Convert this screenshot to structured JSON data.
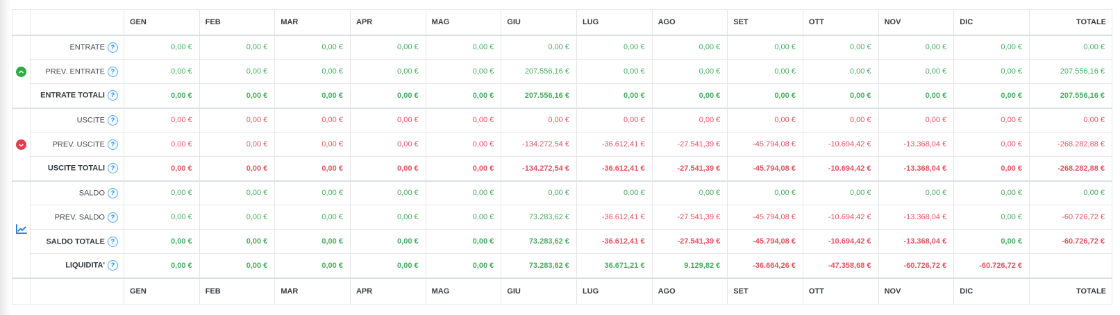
{
  "colors": {
    "positive_value": "#46ad5f",
    "negative_value": "#e25360",
    "income_icon": "#2eac44",
    "expense_icon": "#e23d4d",
    "chart_icon": "#2e7dd1",
    "help_icon": "#2f88d8",
    "border": "#e3e6ea"
  },
  "table": {
    "months": [
      "GEN",
      "FEB",
      "MAR",
      "APR",
      "MAG",
      "GIU",
      "LUG",
      "AGO",
      "SET",
      "OTT",
      "NOV",
      "DIC"
    ],
    "total_label": "TOTALE",
    "help_glyph": "?",
    "groups": [
      {
        "icon": "arrow-up-circle-icon",
        "rows": [
          {
            "label": "ENTRATE",
            "bold": false,
            "cells": [
              [
                "0,00 €",
                "p"
              ],
              [
                "0,00 €",
                "p"
              ],
              [
                "0,00 €",
                "p"
              ],
              [
                "0,00 €",
                "p"
              ],
              [
                "0,00 €",
                "p"
              ],
              [
                "0,00 €",
                "p"
              ],
              [
                "0,00 €",
                "p"
              ],
              [
                "0,00 €",
                "p"
              ],
              [
                "0,00 €",
                "p"
              ],
              [
                "0,00 €",
                "p"
              ],
              [
                "0,00 €",
                "p"
              ],
              [
                "0,00 €",
                "p"
              ],
              [
                "0,00 €",
                "p"
              ]
            ]
          },
          {
            "label": "PREV. ENTRATE",
            "bold": false,
            "cells": [
              [
                "0,00 €",
                "p"
              ],
              [
                "0,00 €",
                "p"
              ],
              [
                "0,00 €",
                "p"
              ],
              [
                "0,00 €",
                "p"
              ],
              [
                "0,00 €",
                "p"
              ],
              [
                "207.556,16 €",
                "p"
              ],
              [
                "0,00 €",
                "p"
              ],
              [
                "0,00 €",
                "p"
              ],
              [
                "0,00 €",
                "p"
              ],
              [
                "0,00 €",
                "p"
              ],
              [
                "0,00 €",
                "p"
              ],
              [
                "0,00 €",
                "p"
              ],
              [
                "207.556,16 €",
                "p"
              ]
            ]
          },
          {
            "label": "ENTRATE TOTALI",
            "bold": true,
            "cells": [
              [
                "0,00 €",
                "p"
              ],
              [
                "0,00 €",
                "p"
              ],
              [
                "0,00 €",
                "p"
              ],
              [
                "0,00 €",
                "p"
              ],
              [
                "0,00 €",
                "p"
              ],
              [
                "207.556,16 €",
                "p"
              ],
              [
                "0,00 €",
                "p"
              ],
              [
                "0,00 €",
                "p"
              ],
              [
                "0,00 €",
                "p"
              ],
              [
                "0,00 €",
                "p"
              ],
              [
                "0,00 €",
                "p"
              ],
              [
                "0,00 €",
                "p"
              ],
              [
                "207.556,16 €",
                "p"
              ]
            ]
          }
        ]
      },
      {
        "icon": "arrow-down-circle-icon",
        "rows": [
          {
            "label": "USCITE",
            "bold": false,
            "cells": [
              [
                "0,00 €",
                "n"
              ],
              [
                "0,00 €",
                "n"
              ],
              [
                "0,00 €",
                "n"
              ],
              [
                "0,00 €",
                "n"
              ],
              [
                "0,00 €",
                "n"
              ],
              [
                "0,00 €",
                "n"
              ],
              [
                "0,00 €",
                "n"
              ],
              [
                "0,00 €",
                "n"
              ],
              [
                "0,00 €",
                "n"
              ],
              [
                "0,00 €",
                "n"
              ],
              [
                "0,00 €",
                "n"
              ],
              [
                "0,00 €",
                "n"
              ],
              [
                "0,00 €",
                "n"
              ]
            ]
          },
          {
            "label": "PREV. USCITE",
            "bold": false,
            "cells": [
              [
                "0,00 €",
                "n"
              ],
              [
                "0,00 €",
                "n"
              ],
              [
                "0,00 €",
                "n"
              ],
              [
                "0,00 €",
                "n"
              ],
              [
                "0,00 €",
                "n"
              ],
              [
                "-134.272,54 €",
                "n"
              ],
              [
                "-36.612,41 €",
                "n"
              ],
              [
                "-27.541,39 €",
                "n"
              ],
              [
                "-45.794,08 €",
                "n"
              ],
              [
                "-10.694,42 €",
                "n"
              ],
              [
                "-13.368,04 €",
                "n"
              ],
              [
                "0,00 €",
                "n"
              ],
              [
                "-268.282,88 €",
                "n"
              ]
            ]
          },
          {
            "label": "USCITE TOTALI",
            "bold": true,
            "cells": [
              [
                "0,00 €",
                "n"
              ],
              [
                "0,00 €",
                "n"
              ],
              [
                "0,00 €",
                "n"
              ],
              [
                "0,00 €",
                "n"
              ],
              [
                "0,00 €",
                "n"
              ],
              [
                "-134.272,54 €",
                "n"
              ],
              [
                "-36.612,41 €",
                "n"
              ],
              [
                "-27.541,39 €",
                "n"
              ],
              [
                "-45.794,08 €",
                "n"
              ],
              [
                "-10.694,42 €",
                "n"
              ],
              [
                "-13.368,04 €",
                "n"
              ],
              [
                "0,00 €",
                "n"
              ],
              [
                "-268.282,88 €",
                "n"
              ]
            ]
          }
        ]
      },
      {
        "icon": "line-chart-icon",
        "rows": [
          {
            "label": "SALDO",
            "bold": false,
            "cells": [
              [
                "0,00 €",
                "p"
              ],
              [
                "0,00 €",
                "p"
              ],
              [
                "0,00 €",
                "p"
              ],
              [
                "0,00 €",
                "p"
              ],
              [
                "0,00 €",
                "p"
              ],
              [
                "0,00 €",
                "p"
              ],
              [
                "0,00 €",
                "p"
              ],
              [
                "0,00 €",
                "p"
              ],
              [
                "0,00 €",
                "p"
              ],
              [
                "0,00 €",
                "p"
              ],
              [
                "0,00 €",
                "p"
              ],
              [
                "0,00 €",
                "p"
              ],
              [
                "0,00 €",
                "p"
              ]
            ]
          },
          {
            "label": "PREV. SALDO",
            "bold": false,
            "cells": [
              [
                "0,00 €",
                "p"
              ],
              [
                "0,00 €",
                "p"
              ],
              [
                "0,00 €",
                "p"
              ],
              [
                "0,00 €",
                "p"
              ],
              [
                "0,00 €",
                "p"
              ],
              [
                "73.283,62 €",
                "p"
              ],
              [
                "-36.612,41 €",
                "n"
              ],
              [
                "-27.541,39 €",
                "n"
              ],
              [
                "-45.794,08 €",
                "n"
              ],
              [
                "-10.694,42 €",
                "n"
              ],
              [
                "-13.368,04 €",
                "n"
              ],
              [
                "0,00 €",
                "p"
              ],
              [
                "-60.726,72 €",
                "n"
              ]
            ]
          },
          {
            "label": "SALDO TOTALE",
            "bold": true,
            "cells": [
              [
                "0,00 €",
                "p"
              ],
              [
                "0,00 €",
                "p"
              ],
              [
                "0,00 €",
                "p"
              ],
              [
                "0,00 €",
                "p"
              ],
              [
                "0,00 €",
                "p"
              ],
              [
                "73.283,62 €",
                "p"
              ],
              [
                "-36.612,41 €",
                "n"
              ],
              [
                "-27.541,39 €",
                "n"
              ],
              [
                "-45.794,08 €",
                "n"
              ],
              [
                "-10.694,42 €",
                "n"
              ],
              [
                "-13.368,04 €",
                "n"
              ],
              [
                "0,00 €",
                "p"
              ],
              [
                "-60.726,72 €",
                "n"
              ]
            ]
          },
          {
            "label": "LIQUIDITA'",
            "bold": true,
            "cells": [
              [
                "0,00 €",
                "p"
              ],
              [
                "0,00 €",
                "p"
              ],
              [
                "0,00 €",
                "p"
              ],
              [
                "0,00 €",
                "p"
              ],
              [
                "0,00 €",
                "p"
              ],
              [
                "73.283,62 €",
                "p"
              ],
              [
                "36.671,21 €",
                "p"
              ],
              [
                "9.129,82 €",
                "p"
              ],
              [
                "-36.664,26 €",
                "n"
              ],
              [
                "-47.358,68 €",
                "n"
              ],
              [
                "-60.726,72 €",
                "n"
              ],
              [
                "-60.726,72 €",
                "n"
              ],
              [
                "",
                ""
              ]
            ]
          }
        ]
      }
    ]
  }
}
